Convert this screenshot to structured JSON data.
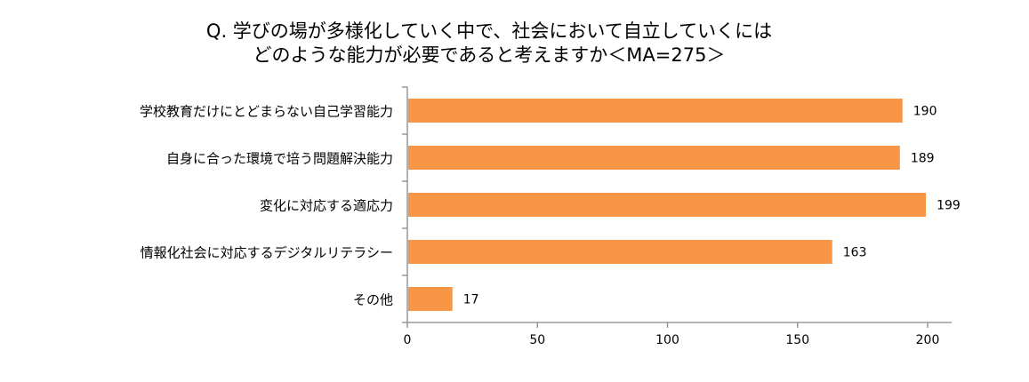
{
  "title_line1": "Q. 学びの場が多様化していく中で、社会において自立していくには",
  "title_line2": "どのような能力が必要であると考えますか＜MA=275＞",
  "chart_data": {
    "type": "bar",
    "orientation": "horizontal",
    "categories": [
      "学校教育だけにとどまらない自己学習能力",
      "自身に合った環境で培う問題解決能力",
      "変化に対応する適応力",
      "情報化社会に対応するデジタルリテラシー",
      "その他"
    ],
    "values": [
      190,
      189,
      199,
      163,
      17
    ],
    "xlim": [
      0,
      210
    ],
    "xticks": [
      0,
      50,
      100,
      150,
      200
    ],
    "bar_color": "#f79646",
    "grid": false,
    "legend": "none"
  }
}
